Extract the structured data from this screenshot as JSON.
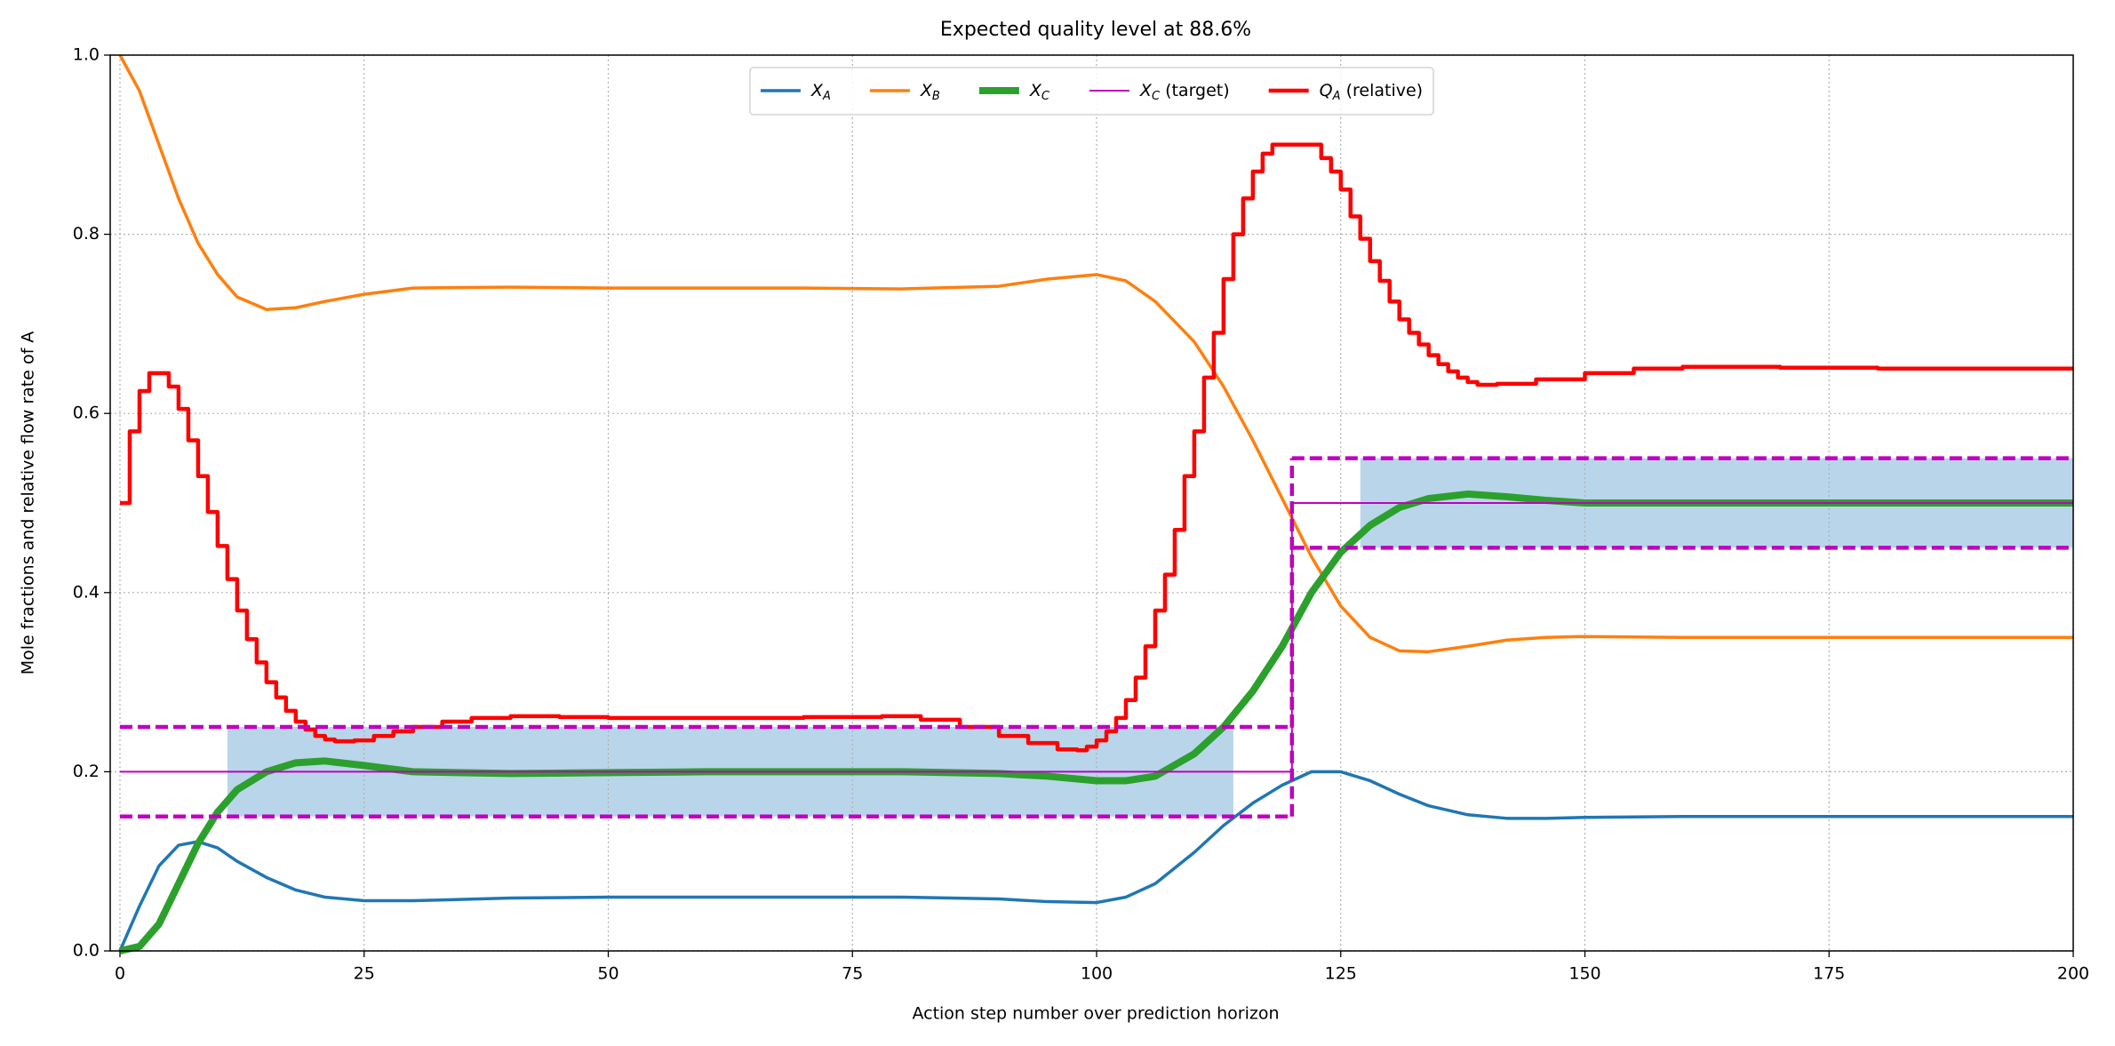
{
  "chart_data": {
    "type": "line",
    "title": "Expected quality level at 88.6%",
    "xlabel": "Action step number over prediction horizon",
    "ylabel": "Mole fractions and relative flow rate of A",
    "xlim": [
      -1,
      200
    ],
    "ylim": [
      0,
      1
    ],
    "xticks": [
      0,
      25,
      50,
      75,
      100,
      125,
      150,
      175,
      200
    ],
    "yticks": [
      {
        "value": 0,
        "label": "0.0"
      },
      0.2,
      0.4,
      0.6,
      0.8,
      {
        "value": 1,
        "label": "1.0"
      }
    ],
    "grid": true,
    "legend": "upper center",
    "series": [
      {
        "name": "X",
        "name_sub": "A",
        "color": "#1f77b4",
        "width": 3.5,
        "step": false,
        "x": [
          0,
          2,
          4,
          6,
          8,
          10,
          12,
          15,
          18,
          21,
          25,
          30,
          40,
          50,
          60,
          70,
          80,
          90,
          95,
          100,
          103,
          106,
          110,
          113,
          116,
          119,
          122,
          125,
          128,
          131,
          134,
          138,
          142,
          146,
          150,
          160,
          170,
          180,
          190,
          200
        ],
        "values": [
          0,
          0.05,
          0.095,
          0.118,
          0.122,
          0.115,
          0.1,
          0.082,
          0.068,
          0.06,
          0.056,
          0.056,
          0.059,
          0.06,
          0.06,
          0.06,
          0.06,
          0.058,
          0.055,
          0.054,
          0.06,
          0.075,
          0.11,
          0.14,
          0.165,
          0.185,
          0.2,
          0.2,
          0.19,
          0.175,
          0.162,
          0.152,
          0.148,
          0.148,
          0.149,
          0.15,
          0.15,
          0.15,
          0.15,
          0.15
        ]
      },
      {
        "name": "X",
        "name_sub": "B",
        "color": "#ff7f0e",
        "width": 3.5,
        "step": false,
        "x": [
          0,
          2,
          4,
          6,
          8,
          10,
          12,
          15,
          18,
          21,
          25,
          30,
          40,
          50,
          60,
          70,
          80,
          90,
          95,
          100,
          103,
          106,
          110,
          113,
          116,
          119,
          122,
          125,
          128,
          131,
          134,
          138,
          142,
          146,
          150,
          160,
          170,
          180,
          190,
          200
        ],
        "values": [
          1,
          0.96,
          0.9,
          0.84,
          0.79,
          0.755,
          0.73,
          0.716,
          0.718,
          0.725,
          0.733,
          0.74,
          0.741,
          0.74,
          0.74,
          0.74,
          0.739,
          0.742,
          0.75,
          0.755,
          0.748,
          0.725,
          0.68,
          0.63,
          0.57,
          0.505,
          0.44,
          0.385,
          0.35,
          0.335,
          0.334,
          0.34,
          0.347,
          0.35,
          0.351,
          0.35,
          0.35,
          0.35,
          0.35,
          0.35
        ]
      },
      {
        "name": "X",
        "name_sub": "C",
        "color": "#2ca02c",
        "width": 8,
        "step": false,
        "x": [
          0,
          2,
          4,
          6,
          8,
          10,
          12,
          15,
          18,
          21,
          25,
          30,
          40,
          50,
          60,
          70,
          80,
          90,
          95,
          100,
          103,
          106,
          110,
          113,
          116,
          119,
          122,
          125,
          128,
          131,
          134,
          138,
          142,
          146,
          150,
          160,
          170,
          180,
          190,
          200
        ],
        "values": [
          0,
          0.005,
          0.03,
          0.075,
          0.12,
          0.155,
          0.18,
          0.2,
          0.21,
          0.212,
          0.207,
          0.2,
          0.198,
          0.199,
          0.2,
          0.2,
          0.2,
          0.198,
          0.195,
          0.19,
          0.19,
          0.195,
          0.22,
          0.25,
          0.29,
          0.34,
          0.4,
          0.445,
          0.475,
          0.495,
          0.505,
          0.51,
          0.507,
          0.503,
          0.5,
          0.5,
          0.5,
          0.5,
          0.5,
          0.5
        ]
      },
      {
        "name": "X",
        "name_sub": "C",
        "name_rest": " (target)",
        "color": "#bf00bf",
        "width": 2,
        "step": false,
        "x": [
          0,
          120,
          120,
          200
        ],
        "values": [
          0.2,
          0.2,
          0.5,
          0.5
        ]
      },
      {
        "name": "Q",
        "name_sub": "A",
        "name_rest": " (relative)",
        "color": "#ff0000",
        "width": 4.5,
        "step": true,
        "x": [
          0,
          1,
          2,
          3,
          4,
          5,
          6,
          7,
          8,
          9,
          10,
          11,
          12,
          13,
          14,
          15,
          16,
          17,
          18,
          19,
          20,
          21,
          22,
          24,
          26,
          28,
          30,
          33,
          36,
          40,
          45,
          50,
          60,
          70,
          78,
          82,
          86,
          90,
          93,
          96,
          98,
          99,
          100,
          101,
          102,
          103,
          104,
          105,
          106,
          107,
          108,
          109,
          110,
          111,
          112,
          113,
          114,
          115,
          116,
          117,
          118,
          122,
          123,
          124,
          125,
          126,
          127,
          128,
          129,
          130,
          131,
          132,
          133,
          134,
          135,
          136,
          137,
          138,
          139,
          141,
          145,
          150,
          155,
          160,
          170,
          180,
          200
        ],
        "values": [
          0.5,
          0.58,
          0.625,
          0.645,
          0.645,
          0.63,
          0.605,
          0.57,
          0.53,
          0.49,
          0.452,
          0.415,
          0.38,
          0.348,
          0.322,
          0.3,
          0.283,
          0.268,
          0.256,
          0.247,
          0.24,
          0.236,
          0.234,
          0.235,
          0.24,
          0.245,
          0.25,
          0.256,
          0.26,
          0.262,
          0.261,
          0.26,
          0.26,
          0.261,
          0.262,
          0.258,
          0.25,
          0.24,
          0.232,
          0.225,
          0.224,
          0.228,
          0.235,
          0.245,
          0.26,
          0.28,
          0.305,
          0.34,
          0.38,
          0.42,
          0.47,
          0.53,
          0.58,
          0.64,
          0.69,
          0.75,
          0.8,
          0.84,
          0.87,
          0.89,
          0.9,
          0.9,
          0.885,
          0.87,
          0.85,
          0.82,
          0.795,
          0.77,
          0.748,
          0.725,
          0.705,
          0.69,
          0.677,
          0.665,
          0.655,
          0.647,
          0.64,
          0.635,
          0.632,
          0.633,
          0.638,
          0.645,
          0.65,
          0.652,
          0.651,
          0.65,
          0.65
        ]
      }
    ],
    "bands": [
      {
        "x": [
          11,
          114
        ],
        "y": [
          0.15,
          0.25
        ],
        "color": "#b9d5ea"
      },
      {
        "x": [
          127,
          200
        ],
        "y": [
          0.45,
          0.55
        ],
        "color": "#b9d5ea"
      }
    ],
    "bounds": [
      {
        "x": [
          0,
          120
        ],
        "lower": 0.15,
        "upper": 0.25,
        "color": "#bf00bf"
      },
      {
        "x": [
          120,
          200
        ],
        "lower": 0.45,
        "upper": 0.55,
        "color": "#bf00bf"
      }
    ]
  }
}
